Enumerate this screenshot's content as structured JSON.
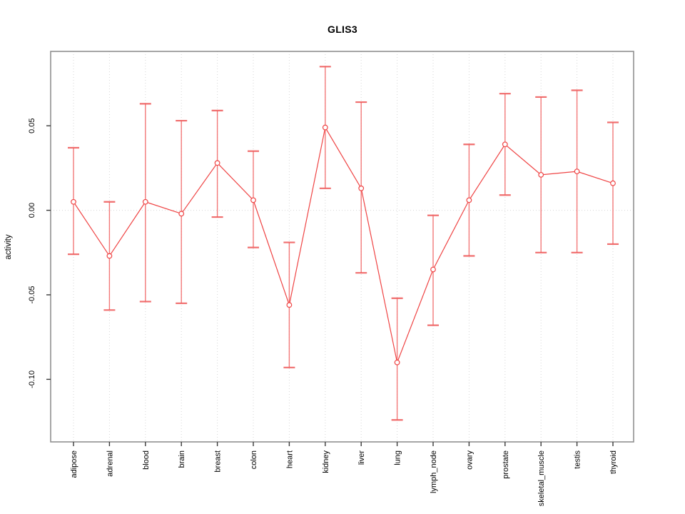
{
  "chart_data": {
    "type": "line",
    "subtype": "point-estimates-with-error-bars",
    "title": "GLIS3",
    "xlabel": "",
    "ylabel": "activity",
    "legend": "none",
    "grid": "dotted vertical gridline per category; dotted horizontal line at 0",
    "categories": [
      "adipose",
      "adrenal",
      "blood",
      "brain",
      "breast",
      "colon",
      "heart",
      "kidney",
      "liver",
      "lung",
      "lymph_node",
      "ovary",
      "prostate",
      "skeletal_muscle",
      "testis",
      "thyroid"
    ],
    "series": [
      {
        "name": "activity",
        "values": [
          0.005,
          -0.027,
          0.005,
          -0.002,
          0.028,
          0.006,
          -0.056,
          0.049,
          0.013,
          -0.09,
          -0.035,
          0.006,
          0.039,
          0.021,
          0.023,
          0.016
        ],
        "lower": [
          -0.026,
          -0.059,
          -0.054,
          -0.055,
          -0.004,
          -0.022,
          -0.093,
          0.013,
          -0.037,
          -0.124,
          -0.068,
          -0.027,
          0.009,
          -0.025,
          -0.025,
          -0.02
        ],
        "upper": [
          0.037,
          0.005,
          0.063,
          0.053,
          0.059,
          0.035,
          -0.019,
          0.085,
          0.064,
          -0.052,
          -0.003,
          0.039,
          0.069,
          0.067,
          0.071,
          0.052
        ]
      }
    ],
    "yticks": {
      "values": [
        0.05,
        0.0,
        -0.05,
        -0.1
      ],
      "labels": [
        "0.05",
        "0.00",
        "-0.05",
        "-0.10"
      ]
    },
    "ylim": [
      -0.137,
      0.094
    ],
    "zero_line": 0,
    "colors": {
      "series_line": "#ef4444",
      "error_bar": "#f26b6b",
      "error_cap": "#ef5e5e",
      "point_stroke": "#ef4444",
      "point_fill": "#ffffff",
      "gridline": "#d6d6d6",
      "axis_box": "#909090",
      "tick_mark": "#3a3a3a",
      "text": "#000000"
    }
  }
}
